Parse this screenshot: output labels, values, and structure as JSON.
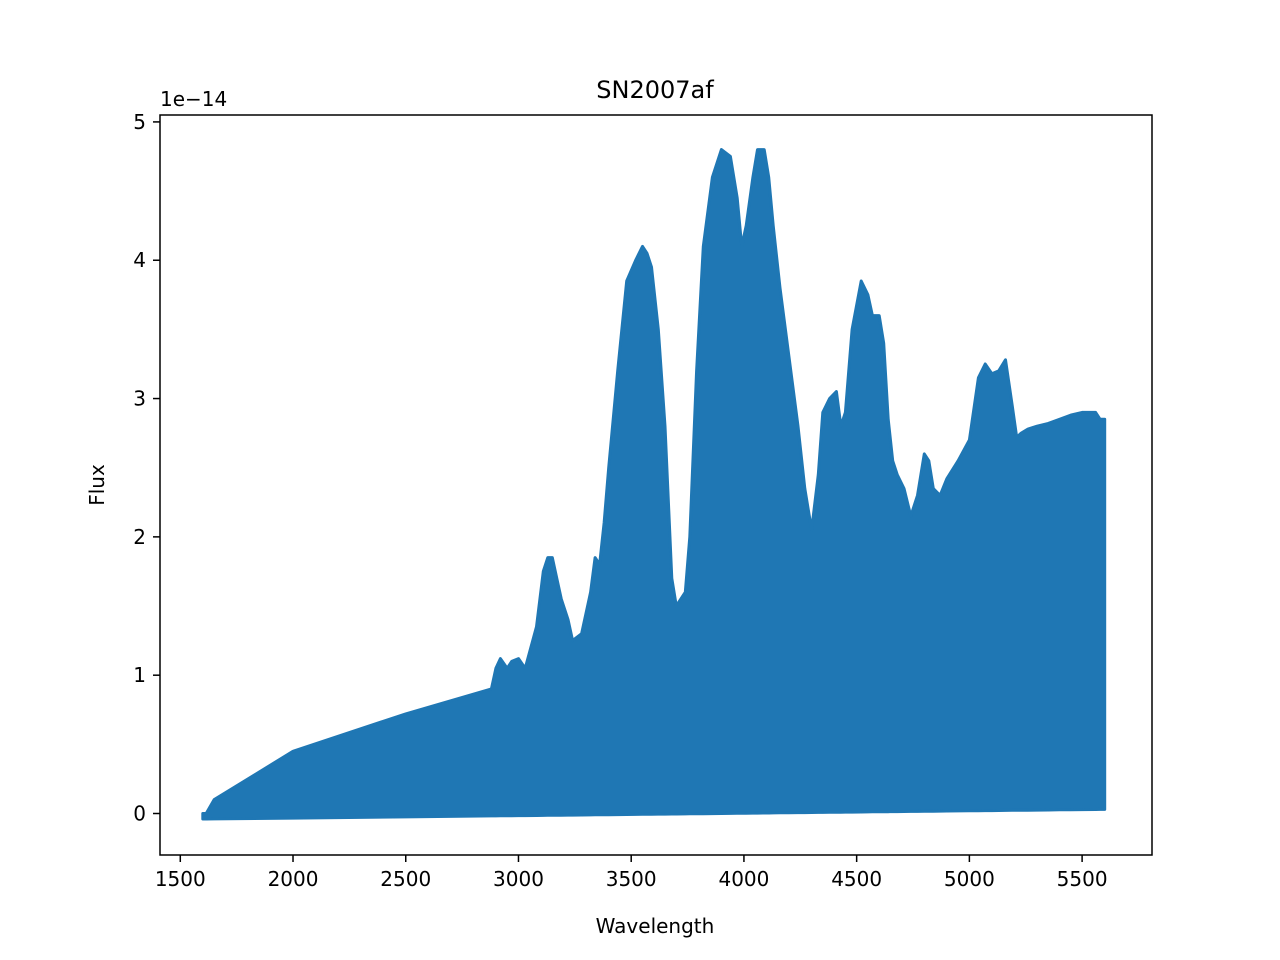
{
  "chart_data": {
    "type": "line",
    "title": "SN2007af",
    "xlabel": "Wavelength",
    "ylabel": "Flux",
    "y_offset_label": "1e−14",
    "xlim": [
      1410,
      5810
    ],
    "ylim": [
      -0.3,
      5.05
    ],
    "y_scale_multiplier": 1e-14,
    "x_ticks": [
      1500,
      2000,
      2500,
      3000,
      3500,
      4000,
      4500,
      5000,
      5500
    ],
    "y_ticks": [
      0,
      1,
      2,
      3,
      4,
      5
    ],
    "grid": false,
    "legend": "none",
    "series_color": "#1f77b4",
    "envelope": {
      "note_free": true,
      "x": [
        1600,
        1615,
        1650,
        2000,
        2500,
        2880,
        2900,
        2920,
        2950,
        2970,
        3000,
        3030,
        3080,
        3110,
        3130,
        3150,
        3170,
        3190,
        3220,
        3240,
        3280,
        3320,
        3340,
        3360,
        3380,
        3400,
        3440,
        3480,
        3520,
        3550,
        3570,
        3590,
        3620,
        3650,
        3680,
        3700,
        3740,
        3760,
        3790,
        3820,
        3860,
        3900,
        3940,
        3970,
        3990,
        4010,
        4040,
        4060,
        4090,
        4110,
        4130,
        4160,
        4200,
        4240,
        4270,
        4300,
        4330,
        4350,
        4380,
        4410,
        4430,
        4450,
        4480,
        4520,
        4550,
        4570,
        4600,
        4620,
        4640,
        4660,
        4680,
        4710,
        4740,
        4770,
        4800,
        4820,
        4840,
        4870,
        4900,
        4950,
        5000,
        5040,
        5070,
        5100,
        5130,
        5160,
        5190,
        5210,
        5230,
        5260,
        5300,
        5350,
        5400,
        5450,
        5500,
        5560,
        5580,
        5600
      ],
      "y": [
        0.0,
        0.0,
        0.1,
        0.45,
        0.72,
        0.9,
        1.05,
        1.12,
        1.05,
        1.1,
        1.12,
        1.05,
        1.35,
        1.75,
        1.85,
        1.85,
        1.7,
        1.55,
        1.4,
        1.25,
        1.3,
        1.6,
        1.85,
        1.8,
        2.1,
        2.5,
        3.2,
        3.85,
        4.0,
        4.1,
        4.05,
        3.95,
        3.5,
        2.8,
        1.7,
        1.5,
        1.6,
        2.0,
        3.2,
        4.1,
        4.6,
        4.8,
        4.75,
        4.45,
        4.1,
        4.25,
        4.6,
        4.8,
        4.8,
        4.6,
        4.25,
        3.8,
        3.3,
        2.8,
        2.35,
        2.05,
        2.45,
        2.9,
        3.0,
        3.05,
        2.8,
        2.9,
        3.5,
        3.85,
        3.75,
        3.6,
        3.6,
        3.4,
        2.85,
        2.55,
        2.45,
        2.35,
        2.15,
        2.3,
        2.6,
        2.55,
        2.35,
        2.3,
        2.42,
        2.55,
        2.7,
        3.15,
        3.25,
        3.18,
        3.2,
        3.28,
        2.95,
        2.72,
        2.75,
        2.78,
        2.8,
        2.82,
        2.85,
        2.88,
        2.9,
        2.9,
        2.85,
        2.85
      ]
    },
    "baseline": {
      "x": [
        1600,
        5600
      ],
      "y": [
        -0.04,
        0.03
      ]
    }
  }
}
